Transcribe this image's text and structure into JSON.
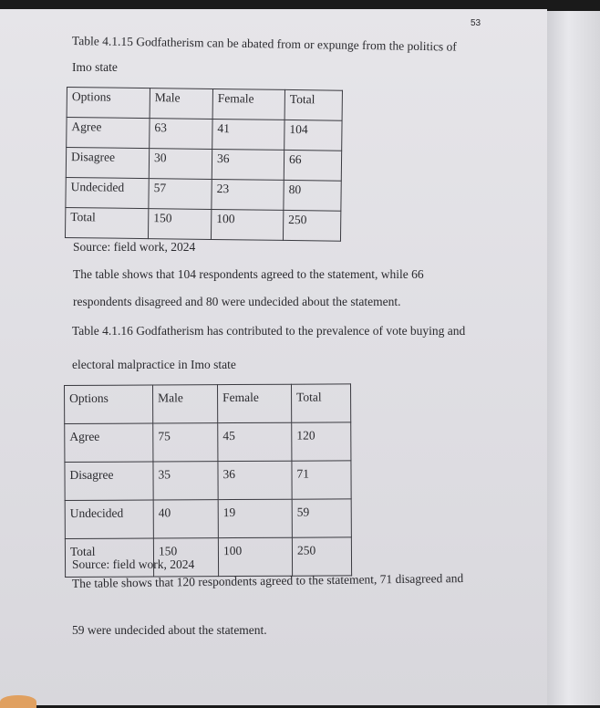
{
  "page_number": "53",
  "table1": {
    "caption_line1": "Table 4.1.15 Godfatherism can be abated from or expunge from the politics of",
    "caption_line2": "Imo state",
    "headers": [
      "Options",
      "Male",
      "Female",
      "Total"
    ],
    "rows": [
      [
        "Agree",
        "63",
        "41",
        "104"
      ],
      [
        "Disagree",
        "30",
        "36",
        "66"
      ],
      [
        "Undecided",
        "57",
        "23",
        "80"
      ],
      [
        "Total",
        "150",
        "100",
        "250"
      ]
    ],
    "source": "Source: field work, 2024",
    "summary_line1": "The table shows that 104 respondents agreed to the statement, while 66",
    "summary_line2": "respondents disagreed and 80 were undecided about the statement."
  },
  "table2": {
    "caption_line1": "Table 4.1.16 Godfatherism has contributed to the prevalence of vote buying and",
    "caption_line2": "electoral malpractice in Imo state",
    "headers": [
      "Options",
      "Male",
      "Female",
      "Total"
    ],
    "rows": [
      [
        "Agree",
        "75",
        "45",
        "120"
      ],
      [
        "Disagree",
        "35",
        "36",
        "71"
      ],
      [
        "Undecided",
        "40",
        "19",
        "59"
      ],
      [
        "Total",
        "150",
        "100",
        "250"
      ]
    ],
    "source": "Source: field work, 2024",
    "summary_line1": "The table shows that 120 respondents agreed to the statement, 71 disagreed and",
    "summary_line2": "59 were undecided about the statement."
  }
}
